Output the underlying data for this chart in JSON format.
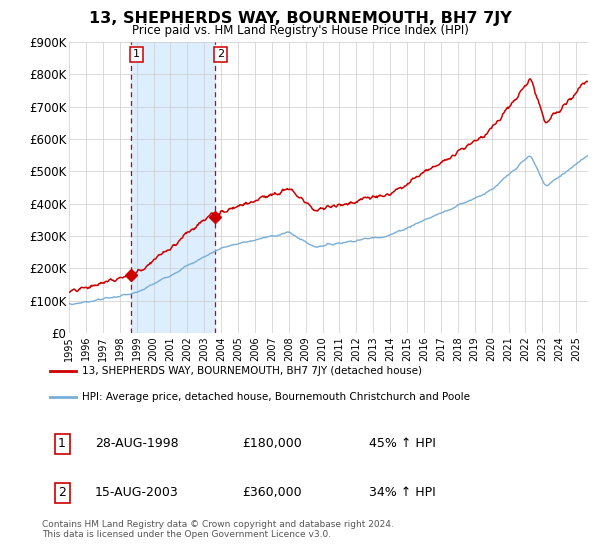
{
  "title": "13, SHEPHERDS WAY, BOURNEMOUTH, BH7 7JY",
  "subtitle": "Price paid vs. HM Land Registry's House Price Index (HPI)",
  "legend_line1": "13, SHEPHERDS WAY, BOURNEMOUTH, BH7 7JY (detached house)",
  "legend_line2": "HPI: Average price, detached house, Bournemouth Christchurch and Poole",
  "transaction1_date": "28-AUG-1998",
  "transaction1_price": "£180,000",
  "transaction1_hpi": "45% ↑ HPI",
  "transaction2_date": "15-AUG-2003",
  "transaction2_price": "£360,000",
  "transaction2_hpi": "34% ↑ HPI",
  "footer": "Contains HM Land Registry data © Crown copyright and database right 2024.\nThis data is licensed under the Open Government Licence v3.0.",
  "red_color": "#cc0000",
  "blue_color": "#7aaed6",
  "shade_color": "#ddeeff",
  "grid_color": "#cccccc",
  "background_color": "#ffffff",
  "ylim": [
    0,
    900000
  ],
  "yticks": [
    0,
    100000,
    200000,
    300000,
    400000,
    500000,
    600000,
    700000,
    800000,
    900000
  ],
  "ytick_labels": [
    "£0",
    "£100K",
    "£200K",
    "£300K",
    "£400K",
    "£500K",
    "£600K",
    "£700K",
    "£800K",
    "£900K"
  ],
  "xtick_years": [
    1995,
    1996,
    1997,
    1998,
    1999,
    2000,
    2001,
    2002,
    2003,
    2004,
    2005,
    2006,
    2007,
    2008,
    2009,
    2010,
    2011,
    2012,
    2013,
    2014,
    2015,
    2016,
    2017,
    2018,
    2019,
    2020,
    2021,
    2022,
    2023,
    2024,
    2025
  ],
  "transaction1_x": 1998.65,
  "transaction2_x": 2003.62,
  "transaction1_y": 180000,
  "transaction2_y": 360000,
  "xmin": 1995.0,
  "xmax": 2025.7
}
